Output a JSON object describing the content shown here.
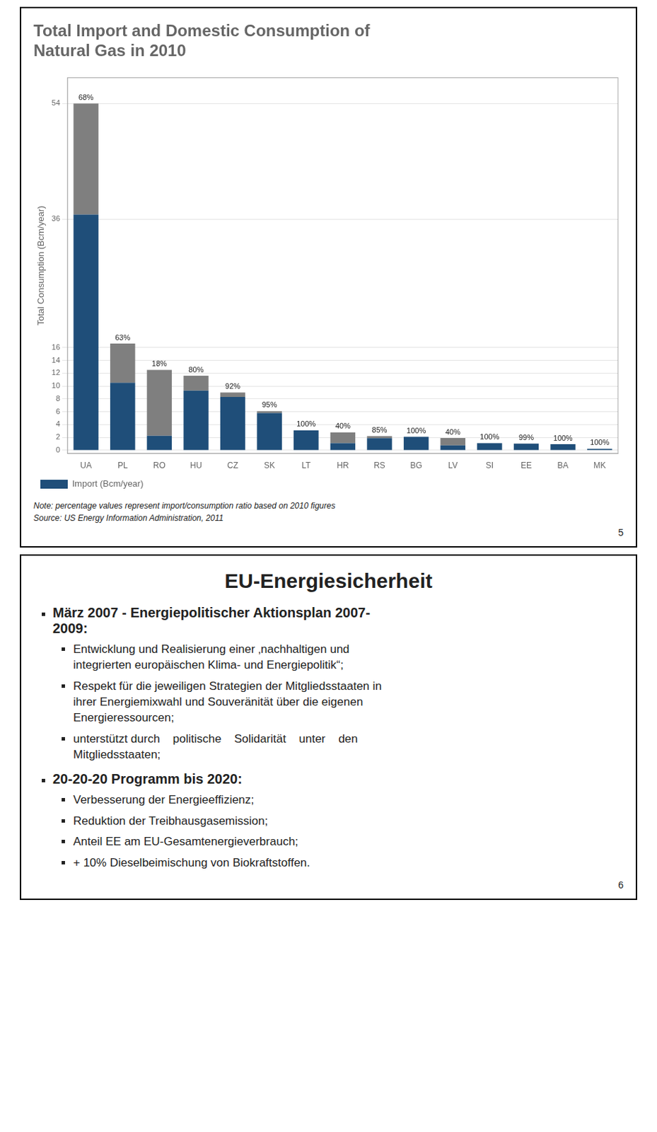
{
  "chart_data": {
    "type": "bar",
    "title": "Total Import and Domestic Consumption of\nNatural Gas in 2010",
    "categories": [
      "UA",
      "PL",
      "RO",
      "HU",
      "CZ",
      "SK",
      "LT",
      "HR",
      "RS",
      "BG",
      "LV",
      "SI",
      "EE",
      "BA",
      "MK"
    ],
    "series": [
      {
        "name": "Import (Bcm/year)",
        "color": "#1F4E79",
        "values": [
          36.7,
          10.5,
          2.25,
          9.3,
          8.3,
          5.8,
          3.1,
          1.12,
          1.87,
          2.1,
          0.76,
          1.1,
          1.04,
          0.95,
          0.22
        ]
      },
      {
        "color": "#7F7F7F",
        "values": [
          17.3,
          6.1,
          10.25,
          2.3,
          0.7,
          0.3,
          0,
          1.68,
          0.33,
          0,
          1.14,
          0,
          0.01,
          0,
          0
        ]
      }
    ],
    "stacked": true,
    "ylabel": "Total Consumption (Bcm/year)",
    "ylim": [
      -0.5,
      58
    ],
    "yticks": [
      0,
      2,
      4,
      6,
      8,
      10,
      12,
      14,
      16,
      36,
      54
    ],
    "grid": "y",
    "legend": "bottom",
    "annotations": [
      {
        "category": "UA",
        "text": "68%"
      },
      {
        "category": "PL",
        "text": "63%"
      },
      {
        "category": "RO",
        "text": "18%"
      },
      {
        "category": "HU",
        "text": "80%"
      },
      {
        "category": "CZ",
        "text": "92%"
      },
      {
        "category": "SK",
        "text": "95%"
      },
      {
        "category": "LT",
        "text": "100%"
      },
      {
        "category": "HR",
        "text": "40%"
      },
      {
        "category": "RS",
        "text": "85%"
      },
      {
        "category": "BG",
        "text": "100%"
      },
      {
        "category": "LV",
        "text": "40%"
      },
      {
        "category": "SI",
        "text": "100%"
      },
      {
        "category": "EE",
        "text": "99%"
      },
      {
        "category": "BA",
        "text": "100%"
      },
      {
        "category": "MK",
        "text": "100%"
      }
    ],
    "notes": [
      "Note: percentage values represent import/consumption ratio based on 2010 figures",
      "Source: US Energy Information Administration, 2011"
    ],
    "slide_number": "5"
  },
  "text_slide": {
    "title": "EU-Energiesicherheit",
    "bullets": [
      {
        "text": "März 2007 - Energiepolitischer Aktionsplan 2007-\n2009:",
        "items": [
          "Entwicklung und Realisierung einer ‚nachhaltigen und\nintegrierten europäischen Klima- und Energiepolitik“;",
          "Respekt für die jeweiligen Strategien der Mitgliedsstaaten in\nihrer Energiemixwahl und Souveränität über die eigenen\nEnergieressourcen;",
          "unterstützt durch    politische    Solidarität    unter    den\nMitgliedsstaaten;"
        ]
      },
      {
        "text": "20-20-20 Programm bis 2020:",
        "items": [
          "Verbesserung der Energieeffizienz;",
          "Reduktion der Treibhausgasemission;",
          "Anteil EE am EU-Gesamtenergieverbrauch;",
          "+ 10% Dieselbeimischung von Biokraftstoffen."
        ]
      }
    ],
    "slide_number": "6"
  }
}
